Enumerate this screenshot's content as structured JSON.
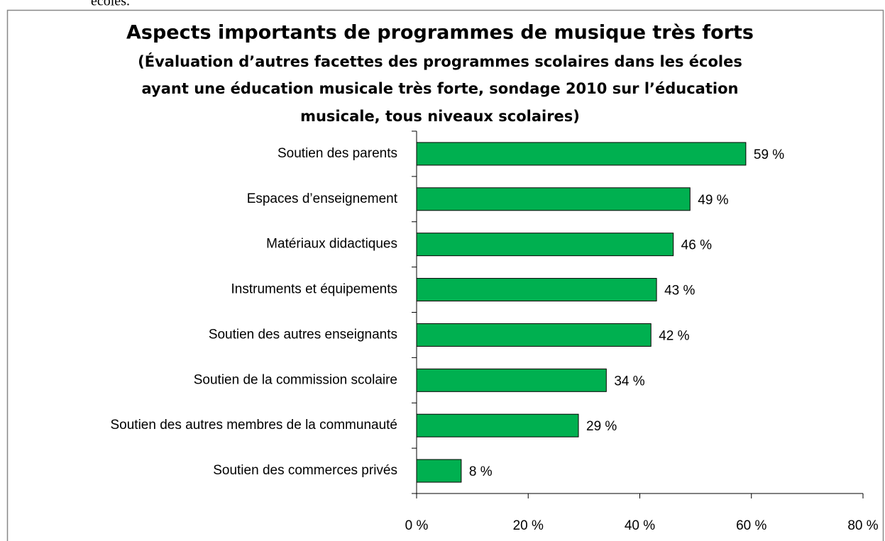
{
  "page_fragment": "écoles.",
  "chart_data": {
    "type": "hbar",
    "title": "Aspects importants de programmes de musique très forts",
    "subtitle": [
      "(Évaluation d’autres facettes des programmes scolaires dans les écoles",
      "ayant une éducation musicale très forte, sondage 2010 sur l’éducation",
      "musicale, tous niveaux scolaires)"
    ],
    "categories": [
      "Soutien des parents",
      "Espaces d’enseignement",
      "Matériaux didactiques",
      "Instruments et équipements",
      "Soutien des autres enseignants",
      "Soutien de la commission scolaire",
      "Soutien des autres membres de la communauté",
      "Soutien des commerces privés"
    ],
    "values": [
      59,
      49,
      46,
      43,
      42,
      34,
      29,
      8
    ],
    "value_labels": [
      "59 %",
      "49 %",
      "46 %",
      "43 %",
      "42 %",
      "34 %",
      "29 %",
      "8 %"
    ],
    "color": "#00b050",
    "xlim": [
      0,
      80
    ],
    "xticks": [
      {
        "value": 0,
        "label": "0 %"
      },
      {
        "value": 20,
        "label": "20 %"
      },
      {
        "value": 40,
        "label": "40 %"
      },
      {
        "value": 60,
        "label": "60 %"
      },
      {
        "value": 80,
        "label": "80 %"
      }
    ],
    "grid": false
  }
}
